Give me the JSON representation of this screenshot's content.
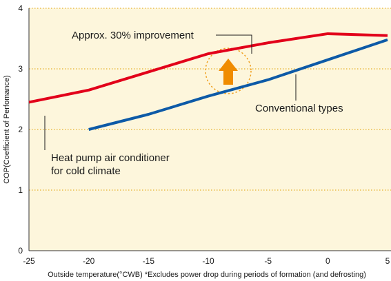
{
  "chart_data": {
    "type": "line",
    "xlabel": "Outside temperature(°CWB) *Excludes power drop during periods of formation (and defrosting)",
    "ylabel": "COP(Coefficient of Perfomance)",
    "xlim": [
      -25,
      5
    ],
    "ylim": [
      0,
      4
    ],
    "x_ticks": [
      -25,
      -20,
      -15,
      -10,
      -5,
      0,
      5
    ],
    "y_ticks": [
      0,
      1,
      2,
      3,
      4
    ],
    "x_tick_labels": [
      "-25",
      "-20",
      "-15",
      "-10",
      "-5",
      "0",
      "5"
    ],
    "y_tick_labels": [
      "0",
      "1",
      "2",
      "3",
      "4"
    ],
    "grid": "horizontal dotted",
    "series": [
      {
        "name": "Heat pump air conditioner for cold climate",
        "color": "#e2001a",
        "x": [
          -25,
          -20,
          -15,
          -10,
          -5,
          0,
          5
        ],
        "y": [
          2.45,
          2.65,
          2.95,
          3.25,
          3.43,
          3.58,
          3.55
        ]
      },
      {
        "name": "Conventional types",
        "color": "#0d5aa7",
        "x": [
          -20,
          -15,
          -10,
          -5,
          0,
          5
        ],
        "y": [
          2.0,
          2.25,
          2.55,
          2.82,
          3.15,
          3.48
        ]
      }
    ],
    "annotations": {
      "improvement": "Approx. 30% improvement",
      "conventional": "Conventional types",
      "heatpump_line1": "Heat pump air conditioner",
      "heatpump_line2": "for cold climate"
    },
    "colors": {
      "plot_background": "#fdf6dc",
      "grid": "#e0a000",
      "highlight_circle": "#f0a020",
      "arrow": "#f08c00"
    }
  }
}
